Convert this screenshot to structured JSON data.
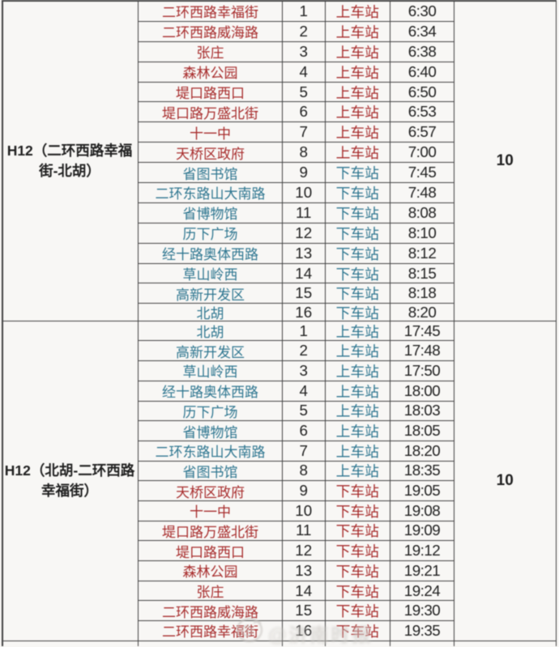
{
  "colors": {
    "red": "#a72c2c",
    "blue": "#2e7690",
    "black": "#1f1f1f",
    "border": "#424242",
    "background": "#f8f7f5",
    "watermark": "#cdcac6"
  },
  "table": {
    "blocks": [
      {
        "route": "H12（二环西路幸福街-北胡）",
        "route_lines": [
          "H12（二环西路幸福",
          "街-北胡）"
        ],
        "interval": "10",
        "rows": [
          {
            "station": "二环西路幸福街",
            "seq": "1",
            "stop_type": "上车站",
            "time": "6:30",
            "color": "red"
          },
          {
            "station": "二环西路威海路",
            "seq": "2",
            "stop_type": "上车站",
            "time": "6:34",
            "color": "red"
          },
          {
            "station": "张庄",
            "seq": "3",
            "stop_type": "上车站",
            "time": "6:38",
            "color": "red"
          },
          {
            "station": "森林公园",
            "seq": "4",
            "stop_type": "上车站",
            "time": "6:40",
            "color": "red"
          },
          {
            "station": "堤口路西口",
            "seq": "5",
            "stop_type": "上车站",
            "time": "6:50",
            "color": "red"
          },
          {
            "station": "堤口路万盛北街",
            "seq": "6",
            "stop_type": "上车站",
            "time": "6:53",
            "color": "red"
          },
          {
            "station": "十一中",
            "seq": "7",
            "stop_type": "上车站",
            "time": "6:57",
            "color": "red"
          },
          {
            "station": "天桥区政府",
            "seq": "8",
            "stop_type": "上车站",
            "time": "7:00",
            "color": "red"
          },
          {
            "station": "省图书馆",
            "seq": "9",
            "stop_type": "下车站",
            "time": "7:45",
            "color": "blue"
          },
          {
            "station": "二环东路山大南路",
            "seq": "10",
            "stop_type": "下车站",
            "time": "7:48",
            "color": "blue"
          },
          {
            "station": "省博物馆",
            "seq": "11",
            "stop_type": "下车站",
            "time": "8:08",
            "color": "blue"
          },
          {
            "station": "历下广场",
            "seq": "12",
            "stop_type": "下车站",
            "time": "8:10",
            "color": "blue"
          },
          {
            "station": "经十路奥体西路",
            "seq": "13",
            "stop_type": "下车站",
            "time": "8:12",
            "color": "blue"
          },
          {
            "station": "草山岭西",
            "seq": "14",
            "stop_type": "下车站",
            "time": "8:15",
            "color": "blue"
          },
          {
            "station": "高新开发区",
            "seq": "15",
            "stop_type": "下车站",
            "time": "8:18",
            "color": "blue"
          },
          {
            "station": "北胡",
            "seq": "16",
            "stop_type": "下车站",
            "time": "8:20",
            "color": "blue"
          }
        ]
      },
      {
        "route": "H12（北胡-二环西路幸福街）",
        "route_lines": [
          "H12（北胡-二环西路",
          "幸福街）"
        ],
        "interval": "10",
        "rows": [
          {
            "station": "北胡",
            "seq": "1",
            "stop_type": "上车站",
            "time": "17:45",
            "color": "blue"
          },
          {
            "station": "高新开发区",
            "seq": "2",
            "stop_type": "上车站",
            "time": "17:48",
            "color": "blue"
          },
          {
            "station": "草山岭西",
            "seq": "3",
            "stop_type": "上车站",
            "time": "17:50",
            "color": "blue"
          },
          {
            "station": "经十路奥体西路",
            "seq": "4",
            "stop_type": "上车站",
            "time": "18:00",
            "color": "blue"
          },
          {
            "station": "历下广场",
            "seq": "5",
            "stop_type": "上车站",
            "time": "18:03",
            "color": "blue"
          },
          {
            "station": "省博物馆",
            "seq": "6",
            "stop_type": "上车站",
            "time": "18:05",
            "color": "blue"
          },
          {
            "station": "二环东路山大南路",
            "seq": "7",
            "stop_type": "上车站",
            "time": "18:20",
            "color": "blue"
          },
          {
            "station": "省图书馆",
            "seq": "8",
            "stop_type": "上车站",
            "time": "18:35",
            "color": "blue"
          },
          {
            "station": "天桥区政府",
            "seq": "9",
            "stop_type": "下车站",
            "time": "19:05",
            "color": "red"
          },
          {
            "station": "十一中",
            "seq": "10",
            "stop_type": "下车站",
            "time": "19:08",
            "color": "red"
          },
          {
            "station": "堤口路万盛北街",
            "seq": "11",
            "stop_type": "下车站",
            "time": "19:09",
            "color": "red"
          },
          {
            "station": "堤口路西口",
            "seq": "12",
            "stop_type": "下车站",
            "time": "19:12",
            "color": "red"
          },
          {
            "station": "森林公园",
            "seq": "13",
            "stop_type": "下车站",
            "time": "19:21",
            "color": "red"
          },
          {
            "station": "张庄",
            "seq": "14",
            "stop_type": "下车站",
            "time": "19:24",
            "color": "red"
          },
          {
            "station": "二环西路威海路",
            "seq": "15",
            "stop_type": "下车站",
            "time": "19:30",
            "color": "red"
          },
          {
            "station": "二环西路幸福街",
            "seq": "16",
            "stop_type": "下车站",
            "time": "19:35",
            "color": "red"
          }
        ]
      }
    ]
  },
  "watermark": {
    "text": "@济南时报"
  },
  "layout": {
    "block1_row_h": 24.9,
    "block1_last_row_h": 21.4,
    "block2_row_h": 24.7,
    "partial_row_h": 6.3
  }
}
